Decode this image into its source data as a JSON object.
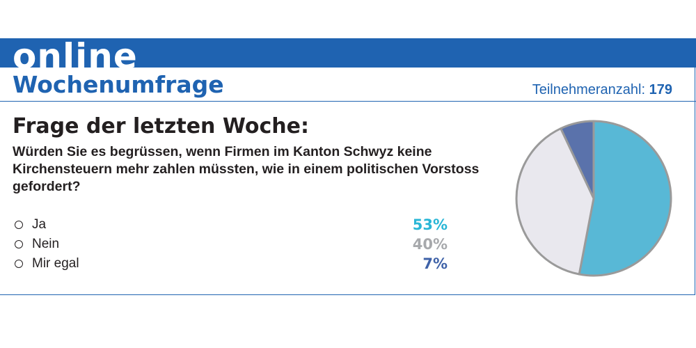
{
  "banner": {
    "word": "online"
  },
  "header": {
    "title": "Wochenumfrage",
    "participants_label": "Teilnehmeranzahl:",
    "participants_count": "179"
  },
  "question": {
    "heading": "Frage der letzten Woche:",
    "text": "Würden Sie es begrüssen, wenn Firmen im Kanton Schwyz keine Kirchensteuern mehr zahlen müssten, wie in einem politischen Vorstoss gefordert?"
  },
  "options": [
    {
      "label": "Ja",
      "percent_text": "53%",
      "color": "#29b6d6"
    },
    {
      "label": "Nein",
      "percent_text": "40%",
      "color": "#a7a9ac"
    },
    {
      "label": "Mir egal",
      "percent_text": "7%",
      "color": "#3f62a8"
    }
  ],
  "chart_data": {
    "type": "pie",
    "categories": [
      "Ja",
      "Nein",
      "Mir egal"
    ],
    "values": [
      53,
      40,
      7
    ],
    "colors": [
      "#58b8d6",
      "#e9e8ee",
      "#5a72ab"
    ],
    "outline_color": "#9a9a9a",
    "start": "12 o'clock",
    "direction": "clockwise"
  },
  "theme": {
    "accent": "#1f63b1"
  }
}
